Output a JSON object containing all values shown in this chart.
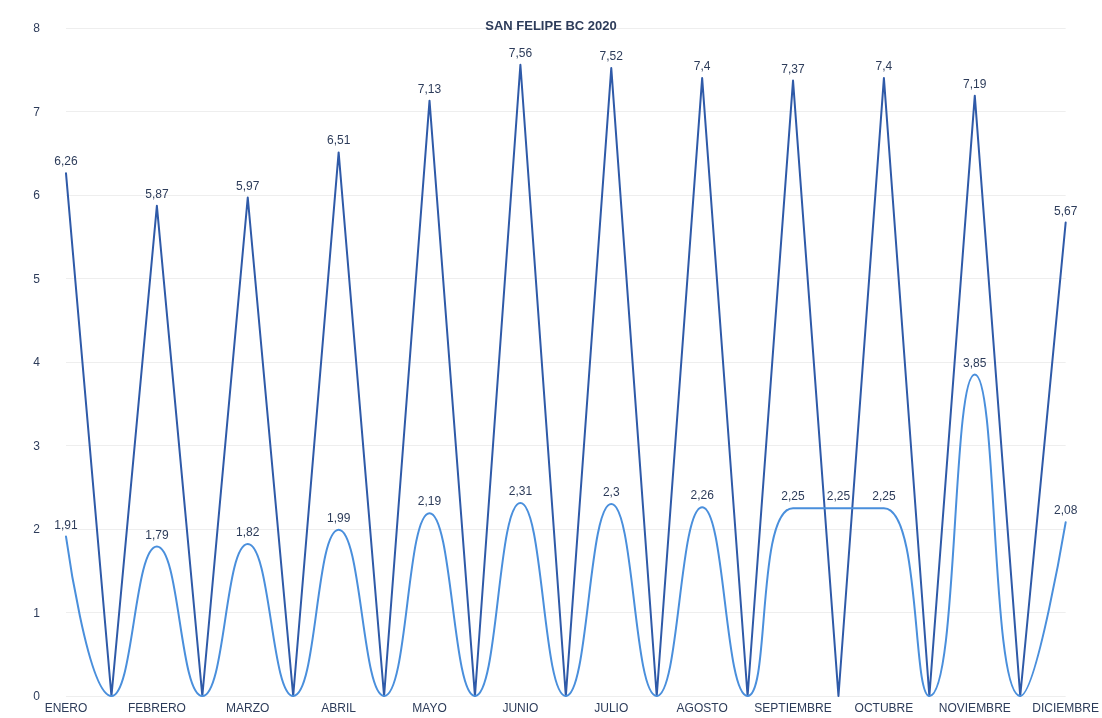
{
  "chart_data": {
    "type": "line",
    "title": "SAN FELIPE BC 2020",
    "categories": [
      "ENERO",
      null,
      "FEBRERO",
      null,
      "MARZO",
      null,
      "ABRIL",
      null,
      "MAYO",
      null,
      "JUNIO",
      null,
      "JULIO",
      null,
      "AGOSTO",
      null,
      "SEPTIEMBRE",
      null,
      "OCTUBRE",
      null,
      "NOVIEMBRE",
      null,
      "DICIEMBRE"
    ],
    "series": [
      {
        "color": "#2f5aa8",
        "values": [
          6.26,
          0,
          5.87,
          0,
          5.97,
          0,
          6.51,
          0,
          7.13,
          0,
          7.56,
          0,
          7.52,
          0,
          7.4,
          0,
          7.37,
          0,
          7.4,
          0,
          7.19,
          0,
          5.67
        ],
        "value_labels": [
          "6,26",
          null,
          "5,87",
          null,
          "5,97",
          null,
          "6,51",
          null,
          "7,13",
          null,
          "7,56",
          null,
          "7,52",
          null,
          "7,4",
          null,
          "7,37",
          null,
          "7,4",
          null,
          "7,19",
          null,
          "5,67"
        ]
      },
      {
        "color": "#4a8fdc",
        "values": [
          1.91,
          0,
          1.79,
          0,
          1.82,
          0,
          1.99,
          0,
          2.19,
          0,
          2.31,
          0,
          2.3,
          0,
          2.26,
          0,
          2.25,
          2.25,
          2.25,
          0,
          3.85,
          0,
          2.08
        ],
        "value_labels": [
          "1,91",
          null,
          "1,79",
          null,
          "1,82",
          null,
          "1,99",
          null,
          "2,19",
          null,
          "2,31",
          null,
          "2,3",
          null,
          "2,26",
          null,
          "2,25",
          "2,25",
          "2,25",
          null,
          "3,85",
          null,
          "2,08"
        ]
      }
    ],
    "ylim": [
      0,
      8
    ],
    "yticks": [
      0,
      1,
      2,
      3,
      4,
      5,
      6,
      7,
      8
    ],
    "grid": "y",
    "marker": "none",
    "line_style": "solid"
  }
}
